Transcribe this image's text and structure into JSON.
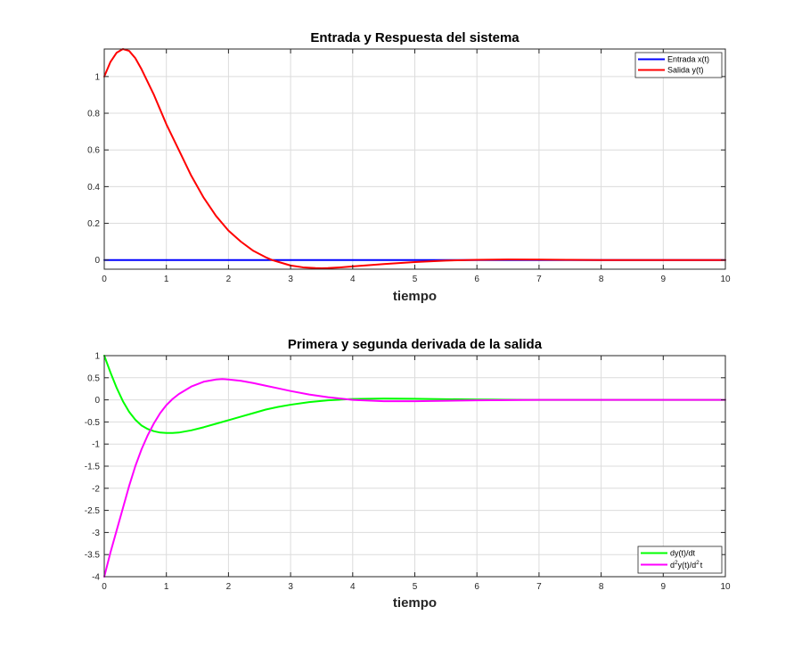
{
  "chart_data": [
    {
      "type": "line",
      "title": "Entrada y Respuesta del sistema",
      "xlabel": "tiempo",
      "ylabel": "",
      "xlim": [
        0,
        10
      ],
      "ylim": [
        -0.05,
        1.15
      ],
      "xticks": [
        "0",
        "1",
        "2",
        "3",
        "4",
        "5",
        "6",
        "7",
        "8",
        "9",
        "10"
      ],
      "yticks": [
        "0",
        "0.2",
        "0.4",
        "0.6",
        "0.8",
        "1"
      ],
      "xtick_values": [
        0,
        1,
        2,
        3,
        4,
        5,
        6,
        7,
        8,
        9,
        10
      ],
      "ytick_values": [
        0,
        0.2,
        0.4,
        0.6,
        0.8,
        1
      ],
      "grid": true,
      "legend_position": "top-right",
      "series": [
        {
          "name": "Entrada x(t)",
          "color": "#0000ff",
          "x": [
            0,
            10
          ],
          "y": [
            0,
            0
          ]
        },
        {
          "name": "Salida y(t)",
          "color": "#ff0000",
          "x": [
            0,
            0.1,
            0.2,
            0.3,
            0.4,
            0.5,
            0.6,
            0.7,
            0.8,
            0.9,
            1.0,
            1.2,
            1.4,
            1.6,
            1.8,
            2.0,
            2.2,
            2.4,
            2.6,
            2.7,
            2.8,
            3.0,
            3.2,
            3.4,
            3.5,
            3.6,
            3.8,
            4.0,
            4.5,
            5.0,
            5.5,
            6.0,
            6.5,
            7.0,
            7.5,
            8.0,
            9.0,
            10.0
          ],
          "y": [
            1.0,
            1.08,
            1.13,
            1.15,
            1.14,
            1.1,
            1.04,
            0.97,
            0.9,
            0.82,
            0.74,
            0.6,
            0.46,
            0.34,
            0.24,
            0.16,
            0.1,
            0.05,
            0.015,
            0.0,
            -0.01,
            -0.03,
            -0.04,
            -0.044,
            -0.045,
            -0.044,
            -0.04,
            -0.035,
            -0.022,
            -0.011,
            -0.003,
            0.001,
            0.003,
            0.002,
            0.001,
            0.0,
            0.0,
            0.0
          ]
        }
      ]
    },
    {
      "type": "line",
      "title": "Primera y segunda derivada de la salida",
      "xlabel": "tiempo",
      "ylabel": "",
      "xlim": [
        0,
        10
      ],
      "ylim": [
        -4,
        1
      ],
      "xticks": [
        "0",
        "1",
        "2",
        "3",
        "4",
        "5",
        "6",
        "7",
        "8",
        "9",
        "10"
      ],
      "yticks": [
        "-4",
        "-3.5",
        "-3",
        "-2.5",
        "-2",
        "-1.5",
        "-1",
        "-0.5",
        "0",
        "0.5",
        "1"
      ],
      "xtick_values": [
        0,
        1,
        2,
        3,
        4,
        5,
        6,
        7,
        8,
        9,
        10
      ],
      "ytick_values": [
        -4,
        -3.5,
        -3,
        -2.5,
        -2,
        -1.5,
        -1,
        -0.5,
        0,
        0.5,
        1
      ],
      "grid": true,
      "legend_position": "bottom-right",
      "series": [
        {
          "name": "dy(t)/dt",
          "color": "#00ff00",
          "x": [
            0,
            0.1,
            0.2,
            0.3,
            0.4,
            0.5,
            0.6,
            0.7,
            0.8,
            0.9,
            1.0,
            1.1,
            1.2,
            1.4,
            1.6,
            1.8,
            2.0,
            2.2,
            2.4,
            2.6,
            2.8,
            3.0,
            3.3,
            3.6,
            4.0,
            4.5,
            5.0,
            5.5,
            6.0,
            7.0,
            8.0,
            9.0,
            10.0
          ],
          "y": [
            1.0,
            0.62,
            0.27,
            -0.03,
            -0.27,
            -0.45,
            -0.58,
            -0.66,
            -0.71,
            -0.74,
            -0.75,
            -0.75,
            -0.74,
            -0.69,
            -0.62,
            -0.54,
            -0.46,
            -0.38,
            -0.3,
            -0.22,
            -0.16,
            -0.11,
            -0.05,
            -0.01,
            0.02,
            0.03,
            0.025,
            0.015,
            0.008,
            0.0,
            0.0,
            0.0,
            0.0
          ]
        },
        {
          "name": "d2y(t)/d2t",
          "color": "#ff00ff",
          "x": [
            0,
            0.1,
            0.2,
            0.3,
            0.4,
            0.5,
            0.6,
            0.7,
            0.8,
            0.9,
            1.0,
            1.1,
            1.2,
            1.4,
            1.6,
            1.8,
            1.9,
            2.0,
            2.2,
            2.4,
            2.6,
            2.8,
            3.0,
            3.3,
            3.6,
            4.0,
            4.5,
            5.0,
            5.5,
            6.0,
            7.0,
            8.0,
            9.0,
            10.0
          ],
          "y": [
            -4.0,
            -3.45,
            -2.95,
            -2.45,
            -1.95,
            -1.5,
            -1.12,
            -0.8,
            -0.53,
            -0.3,
            -0.12,
            0.02,
            0.13,
            0.3,
            0.41,
            0.46,
            0.47,
            0.46,
            0.43,
            0.38,
            0.32,
            0.26,
            0.2,
            0.12,
            0.06,
            0.0,
            -0.03,
            -0.03,
            -0.02,
            -0.01,
            0.0,
            0.0,
            0.0,
            0.0
          ]
        }
      ]
    }
  ],
  "legend_labels": {
    "entrada": "Entrada x(t)",
    "salida": "Salida y(t)",
    "dy": "dy(t)/dt",
    "d2y_prefix": "d",
    "d2y_sup1": "2",
    "d2y_mid": "y(t)/d",
    "d2y_sup2": "2",
    "d2y_suffix": "t"
  }
}
